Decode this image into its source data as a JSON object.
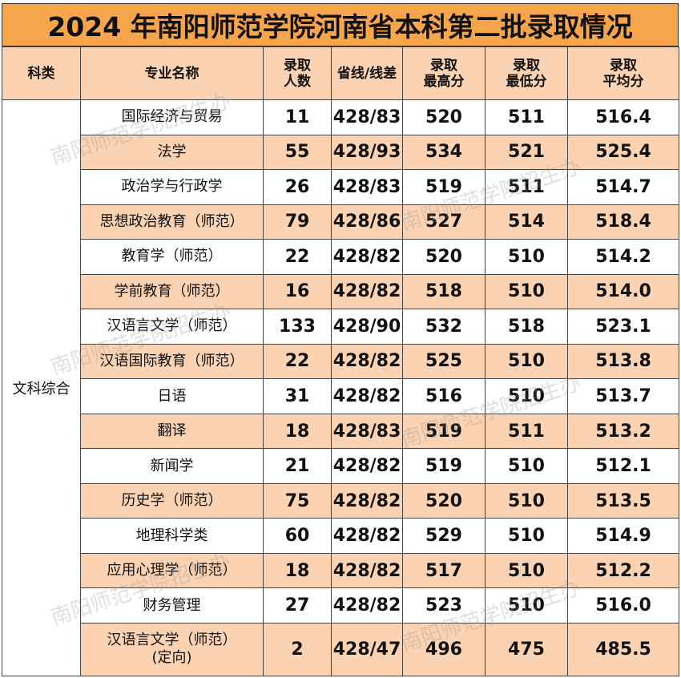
{
  "title": "2024 年南阳师范学院河南省本科第二批录取情况",
  "headers": {
    "category": "科类",
    "major": "专业名称",
    "admitted_1": "录取",
    "admitted_2": "人数",
    "line": "省线/线差",
    "max_1": "录取",
    "max_2": "最高分",
    "min_1": "录取",
    "min_2": "最低分",
    "avg_1": "录取",
    "avg_2": "平均分"
  },
  "category": "文科综合",
  "rows": [
    {
      "major": "国际经济与贸易",
      "count": "11",
      "line": "428/83",
      "max": "520",
      "min": "511",
      "avg": "516.4"
    },
    {
      "major": "法学",
      "count": "55",
      "line": "428/93",
      "max": "534",
      "min": "521",
      "avg": "525.4"
    },
    {
      "major": "政治学与行政学",
      "count": "26",
      "line": "428/83",
      "max": "519",
      "min": "511",
      "avg": "514.7"
    },
    {
      "major": "思想政治教育（师范）",
      "count": "79",
      "line": "428/86",
      "max": "527",
      "min": "514",
      "avg": "518.4"
    },
    {
      "major": "教育学（师范）",
      "count": "22",
      "line": "428/82",
      "max": "520",
      "min": "510",
      "avg": "514.2"
    },
    {
      "major": "学前教育（师范）",
      "count": "16",
      "line": "428/82",
      "max": "518",
      "min": "510",
      "avg": "514.0"
    },
    {
      "major": "汉语言文学（师范）",
      "count": "133",
      "line": "428/90",
      "max": "532",
      "min": "518",
      "avg": "523.1"
    },
    {
      "major": "汉语国际教育（师范）",
      "count": "22",
      "line": "428/82",
      "max": "525",
      "min": "510",
      "avg": "513.8"
    },
    {
      "major": "日语",
      "count": "31",
      "line": "428/82",
      "max": "516",
      "min": "510",
      "avg": "513.7"
    },
    {
      "major": "翻译",
      "count": "18",
      "line": "428/83",
      "max": "519",
      "min": "511",
      "avg": "513.2"
    },
    {
      "major": "新闻学",
      "count": "21",
      "line": "428/82",
      "max": "519",
      "min": "510",
      "avg": "512.1"
    },
    {
      "major": "历史学（师范）",
      "count": "75",
      "line": "428/82",
      "max": "520",
      "min": "510",
      "avg": "513.5"
    },
    {
      "major": "地理科学类",
      "count": "60",
      "line": "428/82",
      "max": "529",
      "min": "510",
      "avg": "514.9"
    },
    {
      "major": "应用心理学（师范）",
      "count": "18",
      "line": "428/82",
      "max": "517",
      "min": "510",
      "avg": "512.2"
    },
    {
      "major": "财务管理",
      "count": "27",
      "line": "428/82",
      "max": "523",
      "min": "510",
      "avg": "516.0"
    },
    {
      "major": "汉语言文学（师范）",
      "major_2": "(定向)",
      "count": "2",
      "line": "428/47",
      "max": "496",
      "min": "475",
      "avg": "485.5"
    }
  ],
  "watermark": "南阳师范学院招生办"
}
